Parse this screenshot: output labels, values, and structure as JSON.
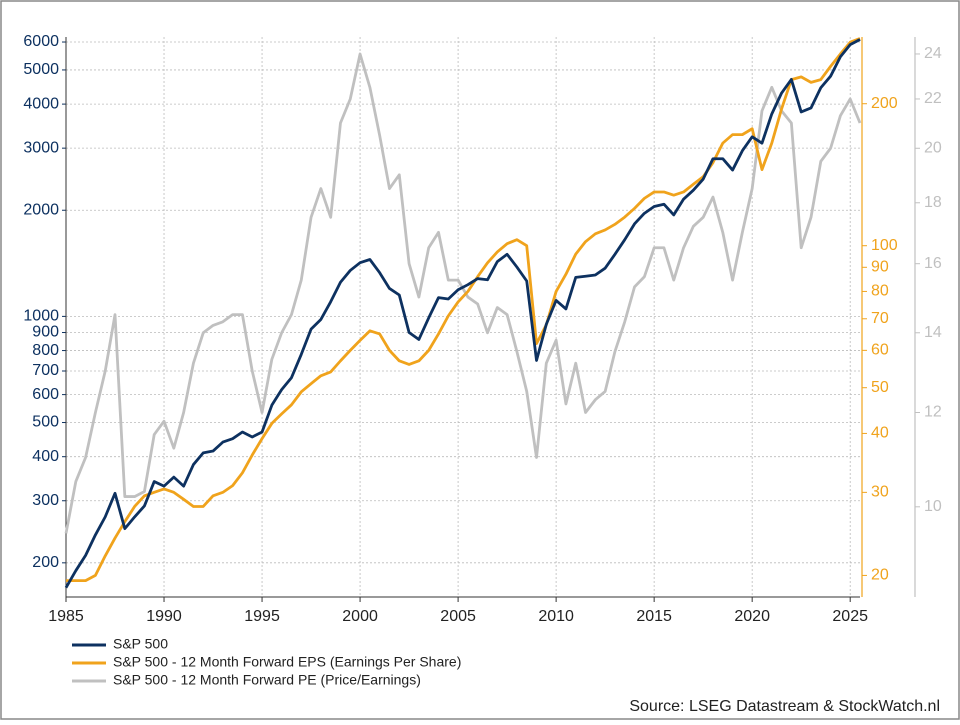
{
  "chart_data": {
    "type": "line",
    "source": "Source: LSEG Datastream & StockWatch.nl",
    "log_scale": true,
    "grid": true,
    "legend": "bottom-left",
    "x": [
      1985,
      1985.5,
      1986,
      1986.5,
      1987,
      1987.5,
      1988,
      1988.5,
      1989,
      1989.5,
      1990,
      1990.5,
      1991,
      1991.5,
      1992,
      1992.5,
      1993,
      1993.5,
      1994,
      1994.5,
      1995,
      1995.5,
      1996,
      1996.5,
      1997,
      1997.5,
      1998,
      1998.5,
      1999,
      1999.5,
      2000,
      2000.5,
      2001,
      2001.5,
      2002,
      2002.5,
      2003,
      2003.5,
      2004,
      2004.5,
      2005,
      2005.5,
      2006,
      2006.5,
      2007,
      2007.5,
      2008,
      2008.5,
      2009,
      2009.5,
      2010,
      2010.5,
      2011,
      2011.5,
      2012,
      2012.5,
      2013,
      2013.5,
      2014,
      2014.5,
      2015,
      2015.5,
      2016,
      2016.5,
      2017,
      2017.5,
      2018,
      2018.5,
      2019,
      2019.5,
      2020,
      2020.5,
      2021,
      2021.5,
      2022,
      2022.5,
      2023,
      2023.5,
      2024,
      2024.5,
      2025,
      2025.5
    ],
    "xlim": [
      1985,
      2025.5
    ],
    "xticks": [
      1985,
      1990,
      1995,
      2000,
      2005,
      2010,
      2015,
      2020,
      2025
    ],
    "ylim": [
      160,
      6200
    ],
    "yticks": [
      200,
      300,
      400,
      500,
      600,
      700,
      800,
      900,
      1000,
      2000,
      3000,
      4000,
      5000,
      6000
    ],
    "y2lim": [
      18,
      277
    ],
    "y2ticks": [
      20,
      30,
      40,
      50,
      60,
      70,
      80,
      90,
      100,
      200
    ],
    "y3lim": [
      8.4,
      24.8
    ],
    "y3ticks": [
      10,
      12,
      14,
      16,
      18,
      20,
      22,
      24
    ],
    "series": [
      {
        "name": "S&P 500",
        "color": "#0d3160",
        "axis": "y",
        "values": [
          170,
          190,
          210,
          240,
          270,
          315,
          250,
          270,
          290,
          340,
          330,
          350,
          330,
          380,
          410,
          415,
          440,
          450,
          470,
          455,
          470,
          560,
          620,
          670,
          780,
          920,
          980,
          1100,
          1250,
          1350,
          1420,
          1450,
          1330,
          1200,
          1150,
          900,
          860,
          990,
          1130,
          1120,
          1190,
          1230,
          1280,
          1270,
          1430,
          1500,
          1380,
          1260,
          750,
          950,
          1110,
          1050,
          1290,
          1300,
          1310,
          1370,
          1500,
          1650,
          1830,
          1960,
          2050,
          2080,
          1940,
          2150,
          2280,
          2450,
          2800,
          2800,
          2600,
          2950,
          3230,
          3100,
          3750,
          4300,
          4700,
          3800,
          3900,
          4450,
          4800,
          5450,
          5900,
          6100
        ]
      },
      {
        "name": "S&P 500 - 12 Month Forward EPS (Earnings Per Share)",
        "color": "#f0a31c",
        "axis": "y2",
        "values": [
          19.5,
          19.5,
          19.5,
          20,
          22,
          24,
          26,
          28,
          29.5,
          30,
          30.5,
          30,
          29,
          28,
          28,
          29.5,
          30,
          31,
          33,
          36,
          39,
          42,
          44,
          46,
          49,
          51,
          53,
          54,
          57,
          60,
          63,
          66,
          65,
          60,
          57,
          56,
          57,
          60,
          65,
          71,
          76,
          80,
          86,
          92,
          97,
          101,
          103,
          100,
          62,
          68,
          80,
          87,
          96,
          102,
          106,
          108,
          111,
          115,
          120,
          126,
          130,
          130,
          128,
          130,
          135,
          140,
          150,
          165,
          172,
          172,
          177,
          145,
          165,
          195,
          225,
          228,
          222,
          225,
          240,
          255,
          270,
          275
        ]
      },
      {
        "name": "S&P 500 - 12 Month Forward PE (Price/Earnings)",
        "color": "#c0c0c0",
        "axis": "y3",
        "values": [
          9.5,
          10.5,
          11,
          12,
          13,
          14.5,
          10.2,
          10.2,
          10.3,
          11.5,
          11.8,
          11.2,
          12,
          13.2,
          14,
          14.2,
          14.3,
          14.5,
          14.5,
          13,
          12,
          13.3,
          14,
          14.5,
          15.5,
          17.5,
          18.5,
          17.5,
          21,
          22,
          24,
          22.5,
          20.5,
          18.5,
          19,
          16,
          15,
          16.5,
          17,
          15.5,
          15.5,
          15,
          14.8,
          14,
          14.7,
          14.5,
          13.5,
          12.5,
          11,
          13.2,
          13.8,
          12.2,
          13.2,
          12,
          12.3,
          12.5,
          13.5,
          14.3,
          15.3,
          15.6,
          16.5,
          16.5,
          15.5,
          16.5,
          17.2,
          17.5,
          18.2,
          17,
          15.5,
          17,
          18.5,
          21.5,
          22.5,
          21.5,
          21,
          16.5,
          17.5,
          19.5,
          20,
          21.3,
          22,
          21
        ]
      }
    ]
  }
}
